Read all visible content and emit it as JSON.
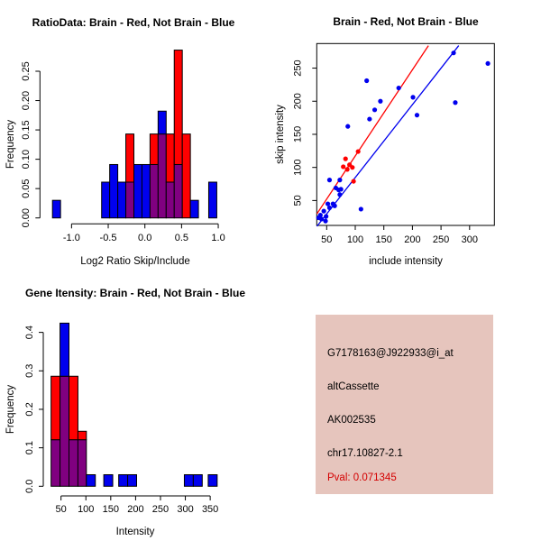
{
  "figure": {
    "background": "#FFFFFF",
    "colors": {
      "brain_red": "#FF0000",
      "not_brain_blue": "#0000EE",
      "overlap_purple": "#800080",
      "axis": "#000000"
    }
  },
  "chart_data": [
    {
      "type": "bar",
      "id": "ratio-histogram",
      "title": "RatioData: Brain - Red, Not Brain - Blue",
      "xlabel": "Log2 Ratio Skip/Include",
      "ylabel": "Frequency",
      "xlim": [
        -1.37,
        1.04
      ],
      "ylim": [
        0,
        0.29
      ],
      "grid": false,
      "xticks": [
        -1.0,
        -0.5,
        0.0,
        0.5,
        1.0
      ],
      "xtick_labels": [
        "-1.0",
        "-0.5",
        "0.0",
        "0.5",
        "1.0"
      ],
      "yticks": [
        0,
        0.05,
        0.1,
        0.15,
        0.2,
        0.25
      ],
      "ytick_labels": [
        "0.00",
        "0.05",
        "0.10",
        "0.15",
        "0.20",
        "0.25"
      ],
      "series": [
        {
          "name": "Brain",
          "color_key": "brain_red"
        },
        {
          "name": "Not Brain",
          "color_key": "not_brain_blue"
        }
      ],
      "bins": [
        {
          "x0": -1.26,
          "x1": -1.15,
          "not_brain": 0.03,
          "brain": 0
        },
        {
          "x0": -0.59,
          "x1": -0.48,
          "not_brain": 0.061,
          "brain": 0
        },
        {
          "x0": -0.48,
          "x1": -0.37,
          "not_brain": 0.091,
          "brain": 0
        },
        {
          "x0": -0.37,
          "x1": -0.26,
          "not_brain": 0.061,
          "brain": 0
        },
        {
          "x0": -0.26,
          "x1": -0.15,
          "not_brain": 0.061,
          "brain": 0.143
        },
        {
          "x0": -0.15,
          "x1": -0.04,
          "not_brain": 0.091,
          "brain": 0
        },
        {
          "x0": -0.04,
          "x1": 0.07,
          "not_brain": 0.091,
          "brain": 0
        },
        {
          "x0": 0.07,
          "x1": 0.18,
          "not_brain": 0.091,
          "brain": 0.143
        },
        {
          "x0": 0.18,
          "x1": 0.29,
          "not_brain": 0.182,
          "brain": 0.143
        },
        {
          "x0": 0.29,
          "x1": 0.4,
          "not_brain": 0.061,
          "brain": 0.143
        },
        {
          "x0": 0.4,
          "x1": 0.51,
          "not_brain": 0.091,
          "brain": 0.286
        },
        {
          "x0": 0.51,
          "x1": 0.62,
          "not_brain": 0,
          "brain": 0.143
        },
        {
          "x0": 0.62,
          "x1": 0.73,
          "not_brain": 0.03,
          "brain": 0
        },
        {
          "x0": 0.87,
          "x1": 0.98,
          "not_brain": 0.061,
          "brain": 0
        }
      ]
    },
    {
      "type": "scatter",
      "id": "intensity-scatter",
      "title": "Brain - Red, Not Brain - Blue",
      "xlabel": "include intensity",
      "ylabel": "skip intensity",
      "xlim": [
        33,
        343
      ],
      "ylim": [
        10,
        287
      ],
      "grid": false,
      "xticks": [
        50,
        100,
        150,
        200,
        250,
        300
      ],
      "yticks": [
        50,
        100,
        150,
        200,
        250
      ],
      "series": [
        {
          "name": "Brain",
          "color_key": "brain_red",
          "points": [
            [
              79,
              101
            ],
            [
              86,
              97
            ],
            [
              90,
              104
            ],
            [
              95,
              100
            ],
            [
              83,
              113
            ],
            [
              105,
              124
            ],
            [
              97,
              79
            ]
          ]
        },
        {
          "name": "Not Brain",
          "color_key": "not_brain_blue",
          "points": [
            [
              36,
              24
            ],
            [
              39,
              28
            ],
            [
              41,
              22
            ],
            [
              45,
              34
            ],
            [
              48,
              19
            ],
            [
              49,
              26
            ],
            [
              52,
              45
            ],
            [
              55,
              39
            ],
            [
              55,
              81
            ],
            [
              61,
              45
            ],
            [
              64,
              42
            ],
            [
              66,
              69
            ],
            [
              71,
              66
            ],
            [
              73,
              59
            ],
            [
              73,
              81
            ],
            [
              75,
              67
            ],
            [
              87,
              162
            ],
            [
              110,
              37
            ],
            [
              120,
              231
            ],
            [
              125,
              173
            ],
            [
              134,
              187
            ],
            [
              144,
              200
            ],
            [
              176,
              220
            ],
            [
              201,
              206
            ],
            [
              208,
              179
            ],
            [
              272,
              273
            ],
            [
              275,
              198
            ],
            [
              332,
              257
            ]
          ]
        }
      ],
      "fit_lines": [
        {
          "name": "brain-fit",
          "color_key": "brain_red",
          "x0": 33,
          "y0": 30,
          "x1": 228,
          "y1": 284
        },
        {
          "name": "not-brain-fit",
          "color_key": "not_brain_blue",
          "x0": 33,
          "y0": 11,
          "x1": 281,
          "y1": 284
        }
      ]
    },
    {
      "type": "bar",
      "id": "gene-intensity-histogram",
      "title": "Gene Itensity: Brain - Red, Not Brain - Blue",
      "xlabel": "Intensity",
      "ylabel": "Frequency",
      "xlim": [
        16,
        377
      ],
      "ylim": [
        0,
        0.43
      ],
      "grid": false,
      "xticks": [
        50,
        100,
        150,
        200,
        250,
        300,
        350
      ],
      "xtick_labels": [
        "50",
        "100",
        "150",
        "200",
        "250",
        "300",
        "350"
      ],
      "yticks": [
        0,
        0.1,
        0.2,
        0.3,
        0.4
      ],
      "ytick_labels": [
        "0.0",
        "0.1",
        "0.2",
        "0.3",
        "0.4"
      ],
      "series": [
        {
          "name": "Brain",
          "color_key": "brain_red"
        },
        {
          "name": "Not Brain",
          "color_key": "not_brain_blue"
        }
      ],
      "bins": [
        {
          "x0": 30,
          "x1": 48,
          "not_brain": 0.121,
          "brain": 0.286
        },
        {
          "x0": 48,
          "x1": 66,
          "not_brain": 0.424,
          "brain": 0.286
        },
        {
          "x0": 66,
          "x1": 84,
          "not_brain": 0.121,
          "brain": 0.286
        },
        {
          "x0": 84,
          "x1": 101,
          "not_brain": 0.121,
          "brain": 0.143
        },
        {
          "x0": 101,
          "x1": 119,
          "not_brain": 0.03,
          "brain": 0
        },
        {
          "x0": 136,
          "x1": 154,
          "not_brain": 0.03,
          "brain": 0
        },
        {
          "x0": 166,
          "x1": 184,
          "not_brain": 0.03,
          "brain": 0
        },
        {
          "x0": 184,
          "x1": 202,
          "not_brain": 0.03,
          "brain": 0
        },
        {
          "x0": 298,
          "x1": 316,
          "not_brain": 0.03,
          "brain": 0
        },
        {
          "x0": 316,
          "x1": 334,
          "not_brain": 0.03,
          "brain": 0
        },
        {
          "x0": 346,
          "x1": 364,
          "not_brain": 0.03,
          "brain": 0
        }
      ]
    }
  ],
  "info_box": {
    "background": "#E6C5BD",
    "text_color": "#000000",
    "probe_id": "G7178163@J922933@i_at",
    "splice_event": "altCassette",
    "accession": "AK002535",
    "location": "chr17.10827-2.1",
    "pval": "Pval: 0.071345",
    "pval_color": "#D40000"
  }
}
